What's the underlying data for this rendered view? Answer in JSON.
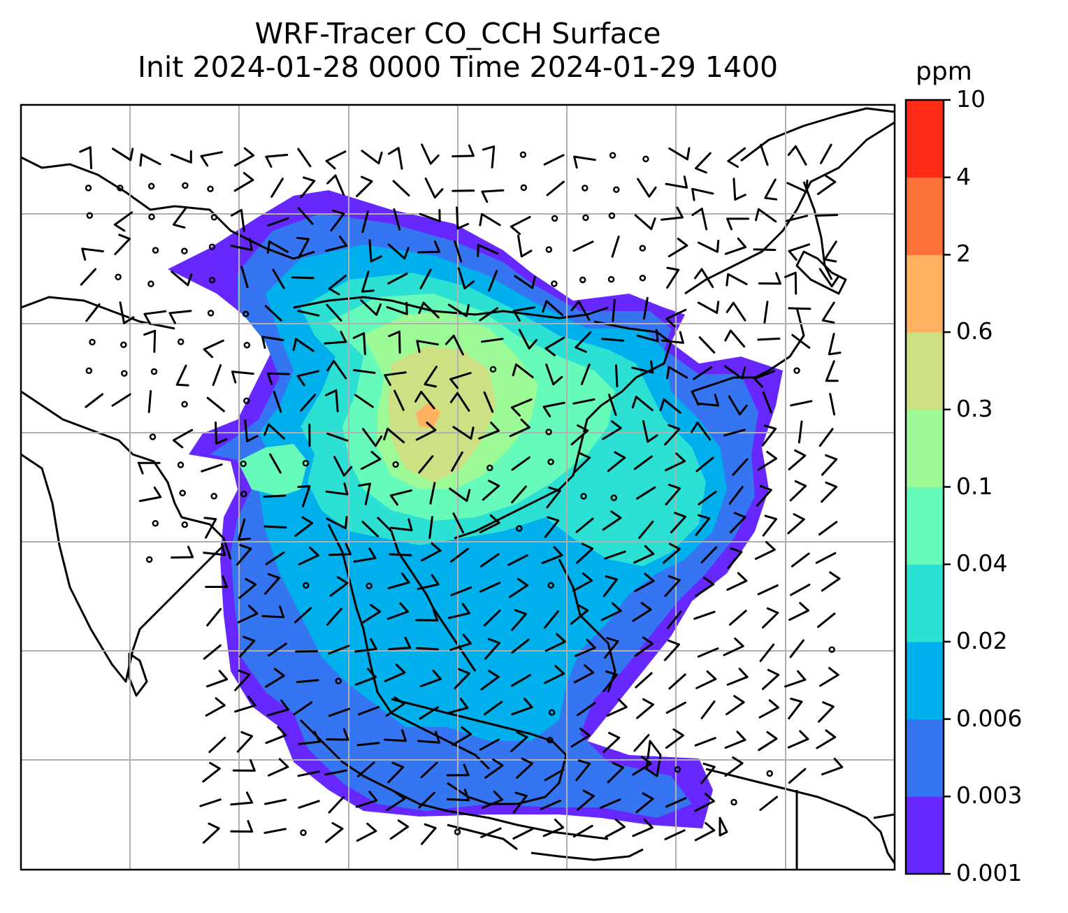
{
  "title": {
    "line1": "WRF-Tracer CO_CCH Surface",
    "line2": "Init 2024-01-28 0000 Time 2024-01-29 1400"
  },
  "colorbar": {
    "unit": "ppm",
    "levels": [
      "0.001",
      "0.003",
      "0.006",
      "0.02",
      "0.04",
      "0.1",
      "0.3",
      "0.6",
      "2",
      "4",
      "10"
    ],
    "colors": [
      "#6628ff",
      "#3575f2",
      "#00b0ec",
      "#2ce0d4",
      "#67fbbb",
      "#9cfb97",
      "#cde084",
      "#ffb060",
      "#ff7239",
      "#ff2b17"
    ]
  },
  "map": {
    "gridlines": true,
    "field": "CO_CCH surface tracer concentration",
    "overlay": "wind barbs"
  }
}
